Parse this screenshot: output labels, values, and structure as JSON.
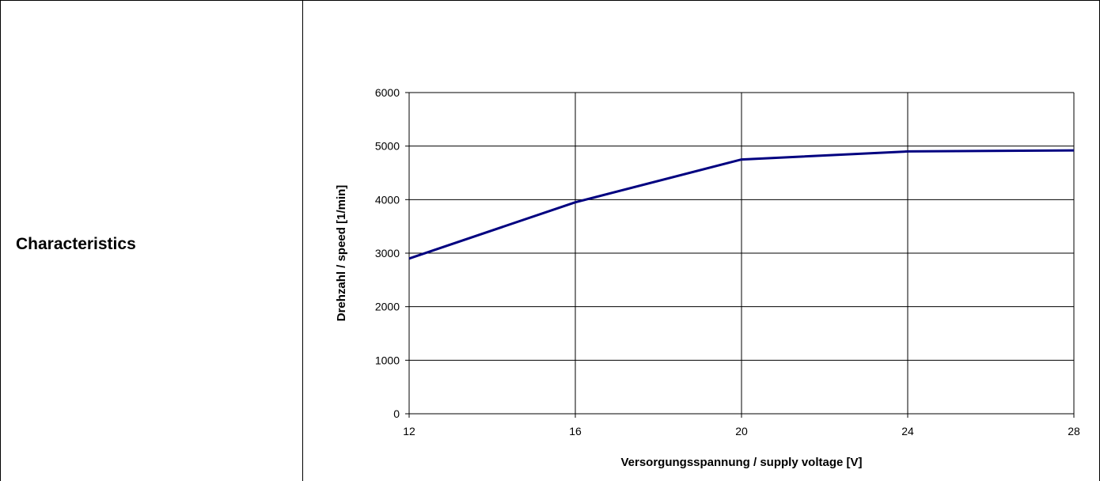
{
  "row_label": "Characteristics",
  "chart_data": {
    "type": "line",
    "title": "",
    "xlabel": "Versorgungsspannung / supply voltage [V]",
    "ylabel": "Drehzahl / speed [1/min]",
    "xlim": [
      12,
      28
    ],
    "ylim": [
      0,
      6000
    ],
    "x_ticks": [
      12,
      16,
      20,
      24,
      28
    ],
    "y_ticks": [
      0,
      1000,
      2000,
      3000,
      4000,
      5000,
      6000
    ],
    "x_tick_labels": [
      "12",
      "16",
      "20",
      "24",
      "28"
    ],
    "y_tick_labels": [
      "0",
      "1000",
      "2000",
      "3000",
      "4000",
      "5000",
      "6000"
    ],
    "grid": true,
    "legend": "none",
    "series": [
      {
        "color": "#000080",
        "x": [
          12,
          16,
          20,
          24,
          28
        ],
        "y": [
          2900,
          3950,
          4750,
          4900,
          4920
        ]
      }
    ]
  }
}
